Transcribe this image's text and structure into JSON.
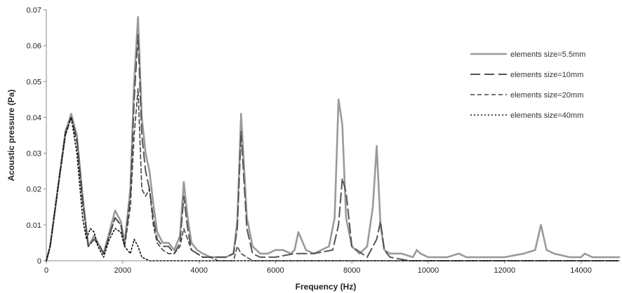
{
  "chart_data": {
    "type": "line",
    "xlabel": "Frequency (Hz)",
    "ylabel": "Acoustic pressure (Pa)",
    "xlim": [
      0,
      15000
    ],
    "ylim": [
      0,
      0.07
    ],
    "x_ticks": [
      0,
      2000,
      4000,
      6000,
      8000,
      10000,
      12000,
      14000
    ],
    "x_tick_labels": [
      "0",
      "2000",
      "4000",
      "6000",
      "8000",
      "10000",
      "12000",
      "14000"
    ],
    "y_ticks": [
      0,
      0.01,
      0.02,
      0.03,
      0.04,
      0.05,
      0.06,
      0.07
    ],
    "y_tick_labels": [
      "0",
      "0.01",
      "0.02",
      "0.03",
      "0.04",
      "0.05",
      "0.06",
      "0.07"
    ],
    "grid": false,
    "legend_position": "right",
    "series": [
      {
        "name": "elements size=5.5mm",
        "color": "#9a9a9a",
        "dash": "solid",
        "x": [
          0,
          100,
          300,
          500,
          650,
          800,
          950,
          1100,
          1250,
          1400,
          1500,
          1650,
          1800,
          1950,
          2050,
          2200,
          2300,
          2400,
          2500,
          2600,
          2700,
          2800,
          2900,
          3050,
          3200,
          3350,
          3500,
          3600,
          3700,
          3800,
          3950,
          4100,
          4300,
          4500,
          4700,
          4900,
          5000,
          5100,
          5250,
          5400,
          5600,
          5800,
          6000,
          6200,
          6400,
          6500,
          6600,
          6800,
          7000,
          7200,
          7400,
          7550,
          7650,
          7750,
          7850,
          8000,
          8200,
          8400,
          8550,
          8650,
          8750,
          8850,
          9000,
          9300,
          9600,
          9700,
          9800,
          10000,
          10500,
          10800,
          11000,
          11500,
          12000,
          12500,
          12800,
          12950,
          13100,
          13300,
          13700,
          14000,
          14100,
          14300,
          15000
        ],
        "y": [
          0.0,
          0.004,
          0.02,
          0.036,
          0.041,
          0.035,
          0.018,
          0.004,
          0.007,
          0.004,
          0.002,
          0.008,
          0.014,
          0.011,
          0.005,
          0.02,
          0.05,
          0.068,
          0.04,
          0.03,
          0.025,
          0.016,
          0.008,
          0.005,
          0.005,
          0.003,
          0.007,
          0.022,
          0.012,
          0.005,
          0.003,
          0.002,
          0.001,
          0.001,
          0.001,
          0.002,
          0.011,
          0.041,
          0.012,
          0.004,
          0.002,
          0.002,
          0.003,
          0.003,
          0.002,
          0.003,
          0.008,
          0.003,
          0.002,
          0.003,
          0.004,
          0.012,
          0.045,
          0.038,
          0.012,
          0.004,
          0.002,
          0.004,
          0.015,
          0.032,
          0.01,
          0.003,
          0.002,
          0.002,
          0.001,
          0.003,
          0.002,
          0.001,
          0.001,
          0.002,
          0.001,
          0.001,
          0.001,
          0.002,
          0.003,
          0.01,
          0.003,
          0.002,
          0.001,
          0.001,
          0.002,
          0.001,
          0.001
        ]
      },
      {
        "name": "elements size=10mm",
        "color": "#555555",
        "dash": "14,6",
        "x": [
          0,
          100,
          300,
          500,
          650,
          800,
          950,
          1100,
          1250,
          1400,
          1500,
          1650,
          1800,
          1950,
          2050,
          2200,
          2300,
          2400,
          2500,
          2600,
          2700,
          2800,
          2900,
          3050,
          3200,
          3350,
          3500,
          3600,
          3700,
          3800,
          3950,
          4100,
          4300,
          4500,
          4700,
          4900,
          5000,
          5100,
          5250,
          5400,
          5600,
          6000,
          6500,
          7000,
          7500,
          7650,
          7750,
          7850,
          8000,
          8400,
          8650,
          8750,
          8850,
          9000,
          9500,
          15000
        ],
        "y": [
          0.0,
          0.004,
          0.02,
          0.036,
          0.04,
          0.034,
          0.017,
          0.004,
          0.006,
          0.004,
          0.002,
          0.007,
          0.012,
          0.01,
          0.004,
          0.018,
          0.045,
          0.063,
          0.035,
          0.025,
          0.02,
          0.012,
          0.006,
          0.004,
          0.004,
          0.002,
          0.005,
          0.018,
          0.009,
          0.003,
          0.002,
          0.001,
          0.001,
          0.001,
          0.001,
          0.002,
          0.009,
          0.036,
          0.009,
          0.002,
          0.001,
          0.001,
          0.002,
          0.002,
          0.003,
          0.01,
          0.023,
          0.019,
          0.004,
          0.001,
          0.006,
          0.011,
          0.003,
          0.001,
          0.0,
          0.0
        ]
      },
      {
        "name": "elements size=20mm",
        "color": "#444444",
        "dash": "6,4",
        "x": [
          0,
          100,
          300,
          500,
          650,
          800,
          950,
          1100,
          1250,
          1400,
          1500,
          1650,
          1800,
          1950,
          2050,
          2200,
          2300,
          2400,
          2500,
          2600,
          2700,
          2800,
          2900,
          3050,
          3200,
          3350,
          3500,
          3600,
          3700,
          3800,
          3950,
          4100,
          4300,
          4500,
          4900,
          5000,
          5100,
          5250,
          5400,
          6000,
          7000,
          15000
        ],
        "y": [
          0.0,
          0.004,
          0.02,
          0.035,
          0.04,
          0.033,
          0.016,
          0.004,
          0.006,
          0.004,
          0.002,
          0.007,
          0.012,
          0.01,
          0.004,
          0.015,
          0.035,
          0.048,
          0.02,
          0.018,
          0.02,
          0.01,
          0.005,
          0.003,
          0.002,
          0.002,
          0.004,
          0.009,
          0.006,
          0.003,
          0.002,
          0.001,
          0.001,
          0.0,
          0.0,
          0.004,
          0.002,
          0.001,
          0.0,
          0.0,
          0.0,
          0.0
        ]
      },
      {
        "name": "elements size=40mm",
        "color": "#111111",
        "dash": "2,3",
        "x": [
          0,
          100,
          300,
          500,
          650,
          800,
          950,
          1050,
          1150,
          1250,
          1350,
          1500,
          1650,
          1800,
          1950,
          2050,
          2200,
          2300,
          2400,
          2500,
          2700,
          3000,
          15000
        ],
        "y": [
          0.0,
          0.004,
          0.02,
          0.035,
          0.04,
          0.03,
          0.012,
          0.006,
          0.009,
          0.008,
          0.004,
          0.001,
          0.006,
          0.009,
          0.008,
          0.004,
          0.002,
          0.006,
          0.004,
          0.001,
          0.0,
          0.0,
          0.0
        ]
      }
    ]
  }
}
